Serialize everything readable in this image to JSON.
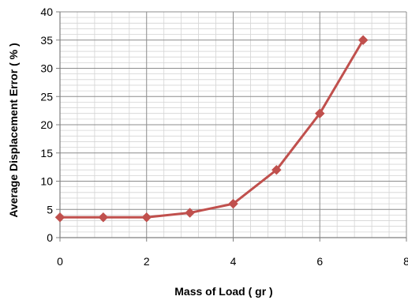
{
  "chart_data": {
    "type": "line",
    "title": "",
    "xlabel": "Mass of Load ( gr )",
    "ylabel": "Average Displacement Error ( % )",
    "xlim": [
      0,
      8
    ],
    "ylim": [
      0,
      40
    ],
    "x_ticks": [
      "0",
      "2",
      "4",
      "6",
      "8"
    ],
    "y_ticks": [
      "0",
      "5",
      "10",
      "15",
      "20",
      "25",
      "30",
      "35",
      "40"
    ],
    "grid": true,
    "legend": "none",
    "series": [
      {
        "x": [
          0,
          1,
          2,
          3,
          4,
          5,
          6,
          7
        ],
        "values": [
          3.6,
          3.6,
          3.6,
          4.4,
          6.0,
          12.0,
          22.0,
          35.0
        ],
        "color": "#c0504d",
        "marker": "diamond"
      }
    ]
  }
}
